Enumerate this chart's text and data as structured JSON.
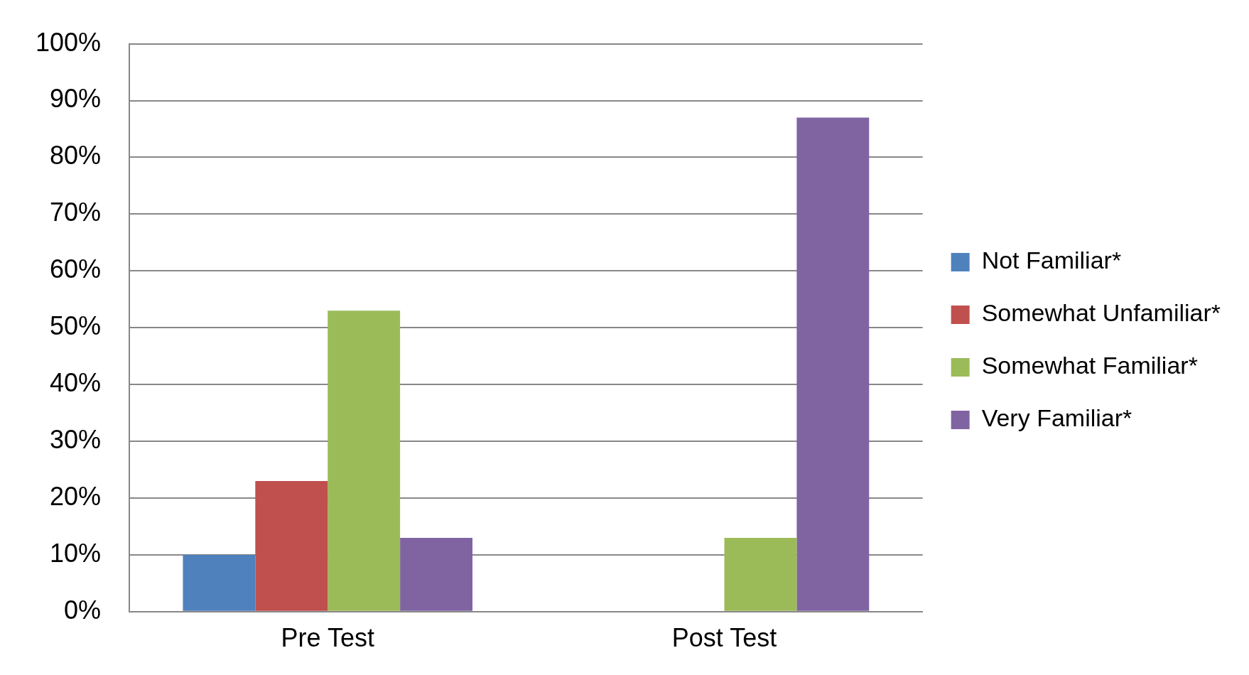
{
  "chart_data": {
    "type": "bar",
    "categories": [
      "Pre Test",
      "Post Test"
    ],
    "series": [
      {
        "name": "Not Familiar*",
        "color": "#4f81bd",
        "values": [
          10,
          0
        ]
      },
      {
        "name": "Somewhat Unfamiliar*",
        "color": "#c0504d",
        "values": [
          23,
          0
        ]
      },
      {
        "name": "Somewhat Familiar*",
        "color": "#9bbb59",
        "values": [
          53,
          13
        ]
      },
      {
        "name": "Very Familiar*",
        "color": "#8064a2",
        "values": [
          13,
          87
        ]
      }
    ],
    "ylim": [
      0,
      100
    ],
    "yticks": [
      {
        "value": 0,
        "label": "0%"
      },
      {
        "value": 10,
        "label": "10%"
      },
      {
        "value": 20,
        "label": "20%"
      },
      {
        "value": 30,
        "label": "30%"
      },
      {
        "value": 40,
        "label": "40%"
      },
      {
        "value": 50,
        "label": "50%"
      },
      {
        "value": 60,
        "label": "60%"
      },
      {
        "value": 70,
        "label": "70%"
      },
      {
        "value": 80,
        "label": "80%"
      },
      {
        "value": 90,
        "label": "90%"
      },
      {
        "value": 100,
        "label": "100%"
      }
    ],
    "grid": "y",
    "legend": "right"
  }
}
